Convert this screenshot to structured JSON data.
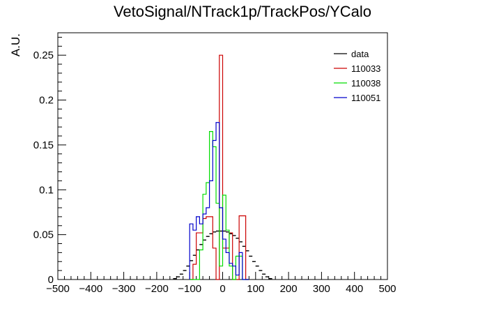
{
  "chart_data": {
    "type": "line",
    "title": "VetoSignal/NTrack1p/TrackPos/YCalo",
    "xlabel": "",
    "ylabel": "A.U.",
    "xlim": [
      -500,
      500
    ],
    "ylim": [
      0,
      0.275
    ],
    "xticks": [
      -500,
      -400,
      -300,
      -200,
      -100,
      0,
      100,
      200,
      300,
      400,
      500
    ],
    "xtick_labels": [
      "−500",
      "−400",
      "−300",
      "−200",
      "−100",
      "0",
      "100",
      "200",
      "300",
      "400",
      "500"
    ],
    "yticks": [
      0,
      0.05,
      0.1,
      0.15,
      0.2,
      0.25
    ],
    "ytick_labels": [
      "0",
      "0.05",
      "0.1",
      "0.15",
      "0.2",
      "0.25"
    ],
    "grid": false,
    "legend_position": "top-right",
    "series": [
      {
        "name": "data",
        "style": "points",
        "color": "#000000",
        "x": [
          -145,
          -135,
          -125,
          -115,
          -105,
          -95,
          -85,
          -75,
          -65,
          -55,
          -45,
          -35,
          -25,
          -15,
          -5,
          5,
          15,
          25,
          35,
          45,
          55,
          65,
          75,
          85,
          95,
          105,
          115,
          125,
          135,
          145
        ],
        "values": [
          0.001,
          0.003,
          0.006,
          0.01,
          0.015,
          0.021,
          0.027,
          0.033,
          0.039,
          0.044,
          0.048,
          0.051,
          0.053,
          0.054,
          0.054,
          0.054,
          0.053,
          0.051,
          0.049,
          0.046,
          0.042,
          0.037,
          0.032,
          0.026,
          0.02,
          0.015,
          0.01,
          0.006,
          0.003,
          0.001
        ]
      },
      {
        "name": "110033",
        "style": "step",
        "color": "#cc0000",
        "edges": [
          -100,
          -90,
          -80,
          -70,
          -60,
          -50,
          -40,
          -30,
          -20,
          -10,
          0,
          10,
          20,
          30,
          40,
          50,
          60,
          70,
          80
        ],
        "values": [
          0.0,
          0.017,
          0.052,
          0.052,
          0.068,
          0.07,
          0.07,
          0.035,
          0.0,
          0.25,
          0.035,
          0.035,
          0.052,
          0.0,
          0.0,
          0.071,
          0.071,
          0.0
        ]
      },
      {
        "name": "110038",
        "style": "step",
        "color": "#00dd00",
        "edges": [
          -100,
          -90,
          -80,
          -70,
          -60,
          -50,
          -40,
          -30,
          -20,
          -10,
          0,
          10,
          20,
          30,
          40,
          50,
          60,
          70,
          80
        ],
        "values": [
          0.0,
          0.0,
          0.0,
          0.033,
          0.095,
          0.108,
          0.165,
          0.148,
          0.085,
          0.015,
          0.094,
          0.055,
          0.015,
          0.0,
          0.026,
          0.026,
          0.0,
          0.0
        ]
      },
      {
        "name": "110051",
        "style": "step",
        "color": "#0000cc",
        "edges": [
          -100,
          -90,
          -80,
          -70,
          -60,
          -50,
          -40,
          -30,
          -20,
          -10,
          0,
          10,
          20,
          30,
          40,
          50,
          60,
          70,
          80
        ],
        "values": [
          0.062,
          0.055,
          0.07,
          0.062,
          0.073,
          0.08,
          0.11,
          0.155,
          0.175,
          0.08,
          0.045,
          0.03,
          0.018,
          0.015,
          0.005,
          0.03,
          0.0,
          0.0
        ]
      }
    ]
  }
}
